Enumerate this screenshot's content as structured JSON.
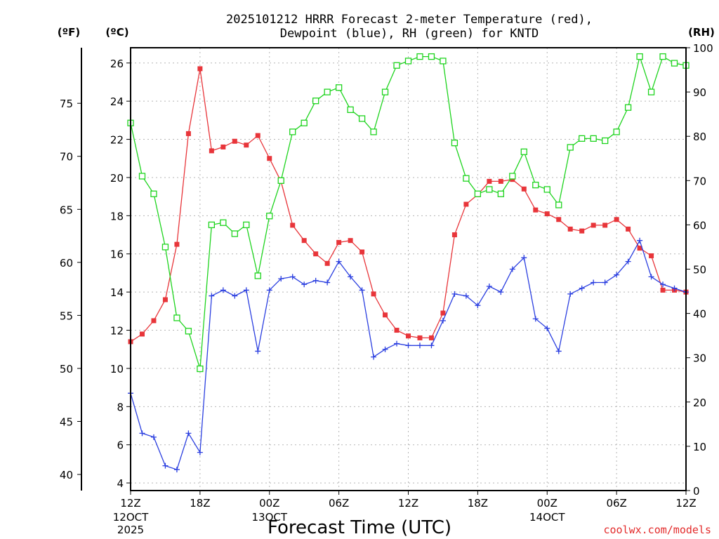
{
  "chart_data": {
    "type": "line",
    "title_line1": "2025101212 HRRR Forecast 2-meter Temperature (red),",
    "title_line2": "Dewpoint (blue), RH (green) for KNTD",
    "xlabel": "Forecast Time (UTC)",
    "credit": "coolwx.com/models",
    "unit_labels": {
      "fahrenheit": "(ºF)",
      "celsius": "(ºC)",
      "rh": "(RH)"
    },
    "axes": {
      "celsius": {
        "range": [
          3.6,
          26.8
        ],
        "ticks": [
          4,
          6,
          8,
          10,
          12,
          14,
          16,
          18,
          20,
          22,
          24,
          26
        ]
      },
      "fahrenheit": {
        "range": [
          38.48,
          80.24
        ],
        "ticks": [
          40,
          45,
          50,
          55,
          60,
          65,
          70,
          75
        ]
      },
      "rh": {
        "range": [
          0,
          100
        ],
        "ticks": [
          0,
          10,
          20,
          30,
          40,
          50,
          60,
          70,
          80,
          90,
          100
        ]
      },
      "forecast_hour_range": [
        0,
        48
      ],
      "x_ticks": [
        {
          "hour": 0,
          "label": "12Z",
          "date": "12OCT",
          "year": "2025"
        },
        {
          "hour": 6,
          "label": "18Z"
        },
        {
          "hour": 12,
          "label": "00Z",
          "date": "13OCT"
        },
        {
          "hour": 18,
          "label": "06Z"
        },
        {
          "hour": 24,
          "label": "12Z"
        },
        {
          "hour": 30,
          "label": "18Z"
        },
        {
          "hour": 36,
          "label": "00Z",
          "date": "14OCT"
        },
        {
          "hour": 42,
          "label": "06Z"
        },
        {
          "hour": 48,
          "label": "12Z"
        }
      ]
    },
    "grid": true,
    "series": [
      {
        "key": "temperature",
        "axis": "celsius",
        "color": "#e8353a",
        "marker": "filled-square",
        "values": [
          11.4,
          11.8,
          12.5,
          13.6,
          16.5,
          22.3,
          25.7,
          21.4,
          21.6,
          21.9,
          21.7,
          22.2,
          21.0,
          19.8,
          17.5,
          16.7,
          16.0,
          15.5,
          16.6,
          16.7,
          16.1,
          13.9,
          12.8,
          12.0,
          11.7,
          11.6,
          11.6,
          12.9,
          17.0,
          18.6,
          19.1,
          19.8,
          19.8,
          19.9,
          19.4,
          18.3,
          18.1,
          17.8,
          17.3,
          17.2,
          17.5,
          17.5,
          17.8,
          17.3,
          16.3,
          15.9,
          14.1,
          14.1,
          14.0
        ]
      },
      {
        "key": "dewpoint",
        "axis": "celsius",
        "color": "#2b3fe0",
        "marker": "plus",
        "values": [
          8.7,
          6.6,
          6.4,
          4.9,
          4.7,
          6.6,
          5.6,
          13.8,
          14.1,
          13.8,
          14.1,
          10.9,
          14.1,
          14.7,
          14.8,
          14.4,
          14.6,
          14.5,
          15.6,
          14.8,
          14.1,
          10.6,
          11.0,
          11.3,
          11.2,
          11.2,
          11.2,
          12.5,
          13.9,
          13.8,
          13.3,
          14.3,
          14.0,
          15.2,
          15.8,
          12.6,
          12.1,
          10.9,
          13.9,
          14.2,
          14.5,
          14.5,
          14.9,
          15.6,
          16.7,
          14.8,
          14.4,
          14.2,
          14.0
        ]
      },
      {
        "key": "rh",
        "axis": "rh",
        "color": "#1ed41e",
        "marker": "open-square",
        "values": [
          83,
          71,
          67,
          55,
          39,
          36,
          27.5,
          60,
          60.5,
          58,
          60,
          48.5,
          62,
          70,
          81,
          83,
          88,
          90,
          91,
          86,
          84,
          81,
          90,
          96,
          97,
          98,
          98,
          97,
          78.5,
          70.5,
          67,
          68,
          67,
          71,
          76.5,
          69,
          68,
          64.5,
          77.5,
          79.5,
          79.5,
          79,
          81,
          86.5,
          98,
          90,
          98,
          96.5,
          96
        ]
      }
    ]
  }
}
